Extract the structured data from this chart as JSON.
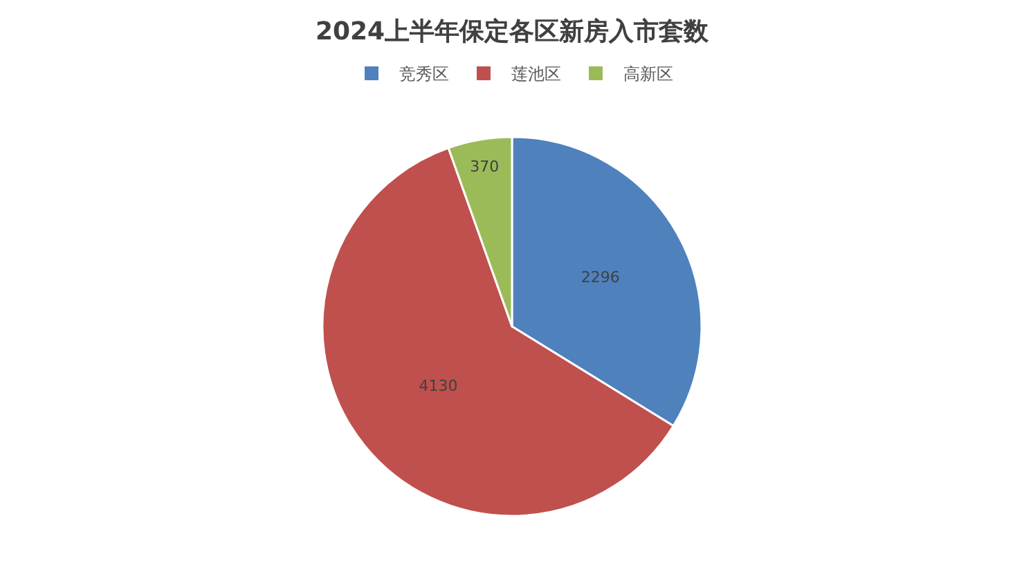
{
  "chart_data": {
    "type": "pie",
    "title": "2024上半年保定各区新房入市套数",
    "categories": [
      "竞秀区",
      "莲池区",
      "高新区"
    ],
    "values": [
      2296,
      4130,
      370
    ],
    "colors": [
      "#4f81bd",
      "#c0504d",
      "#9bbb59"
    ],
    "data_labels": true,
    "legend": "top"
  }
}
